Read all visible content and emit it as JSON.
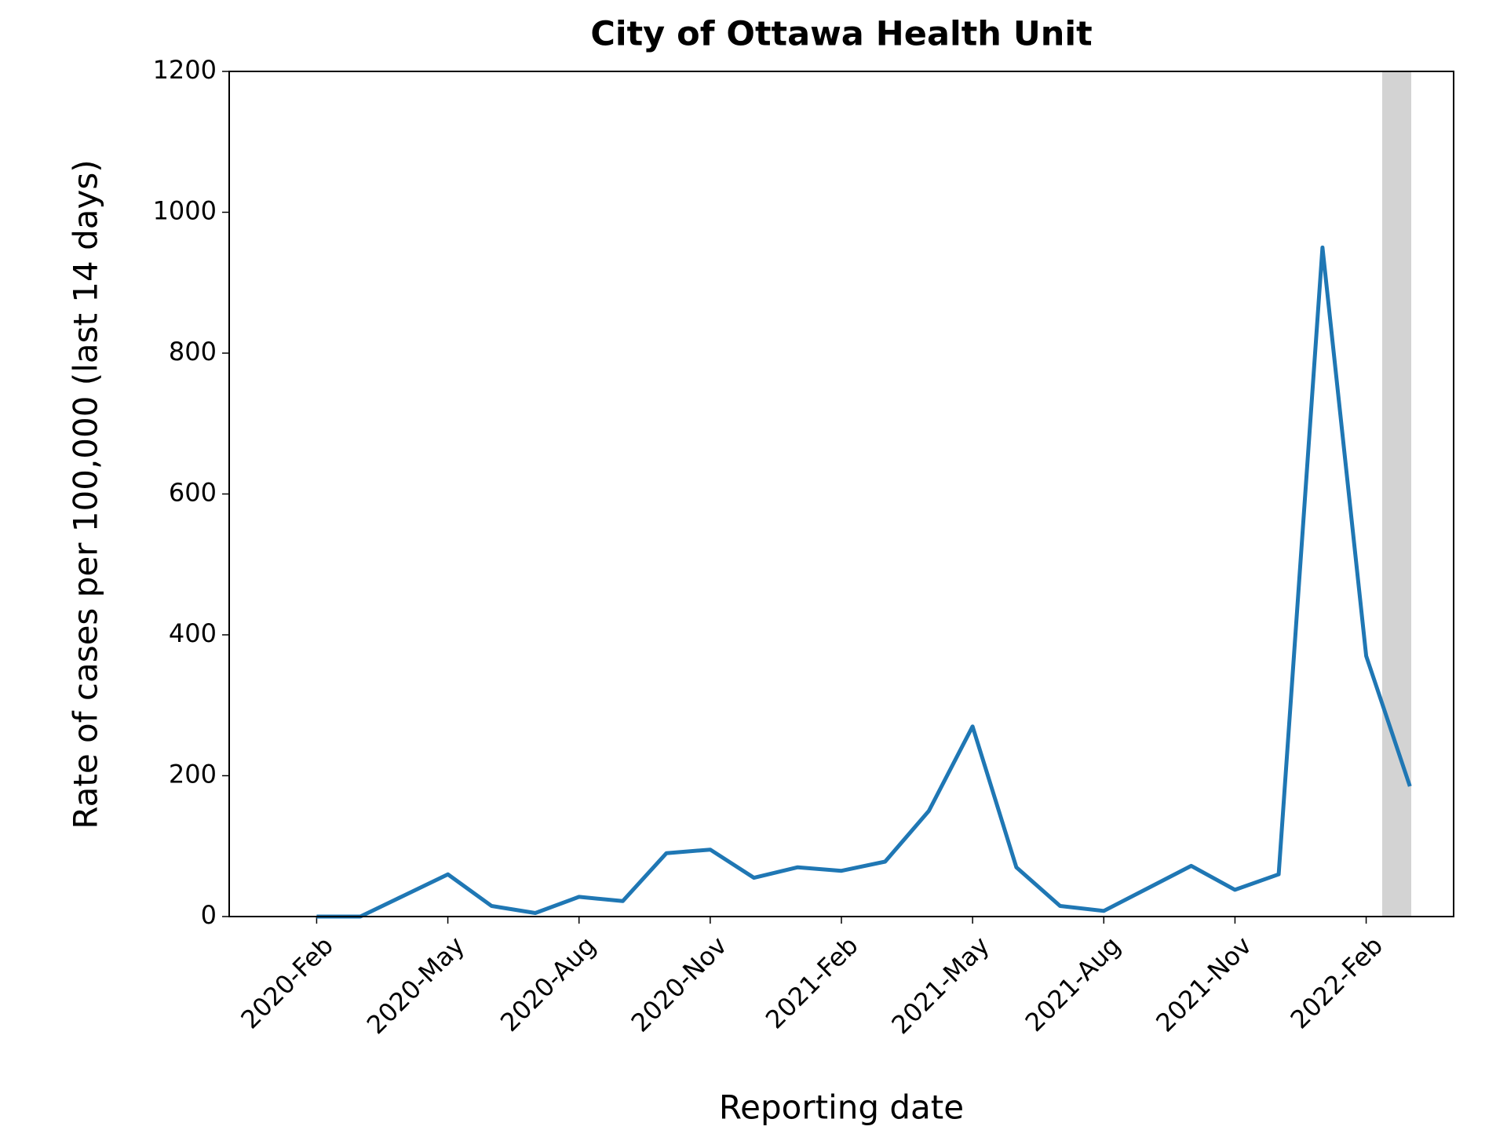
{
  "chart_data": {
    "type": "line",
    "title": "City of Ottawa Health Unit",
    "x_label": "Reporting date",
    "y_label": "Rate of cases per 100,000 (last 14 days)",
    "x": [
      "2020-02",
      "2020-03",
      "2020-04",
      "2020-05",
      "2020-06",
      "2020-07",
      "2020-08",
      "2020-09",
      "2020-10",
      "2020-11",
      "2020-12",
      "2021-01",
      "2021-02",
      "2021-03",
      "2021-04",
      "2021-05",
      "2021-06",
      "2021-07",
      "2021-08",
      "2021-09",
      "2021-10",
      "2021-11",
      "2021-12",
      "2022-01",
      "2022-02",
      "2022-03"
    ],
    "series": [
      {
        "color": "#1f77b4",
        "values": [
          0,
          0,
          30,
          60,
          15,
          5,
          28,
          22,
          90,
          95,
          55,
          70,
          65,
          78,
          150,
          270,
          70,
          15,
          8,
          40,
          72,
          38,
          60,
          950,
          370,
          185
        ]
      }
    ],
    "xlim": [
      "2019-12",
      "2022-04"
    ],
    "xticks": [
      {
        "value": "2020-02",
        "label": "2020-Feb"
      },
      {
        "value": "2020-05",
        "label": "2020-May"
      },
      {
        "value": "2020-08",
        "label": "2020-Aug"
      },
      {
        "value": "2020-11",
        "label": "2020-Nov"
      },
      {
        "value": "2021-02",
        "label": "2021-Feb"
      },
      {
        "value": "2021-05",
        "label": "2021-May"
      },
      {
        "value": "2021-08",
        "label": "2021-Aug"
      },
      {
        "value": "2021-11",
        "label": "2021-Nov"
      },
      {
        "value": "2022-02",
        "label": "2022-Feb"
      }
    ],
    "ylim": [
      0,
      1200
    ],
    "yticks": [
      0,
      200,
      400,
      600,
      800,
      1000,
      1200
    ]
  }
}
